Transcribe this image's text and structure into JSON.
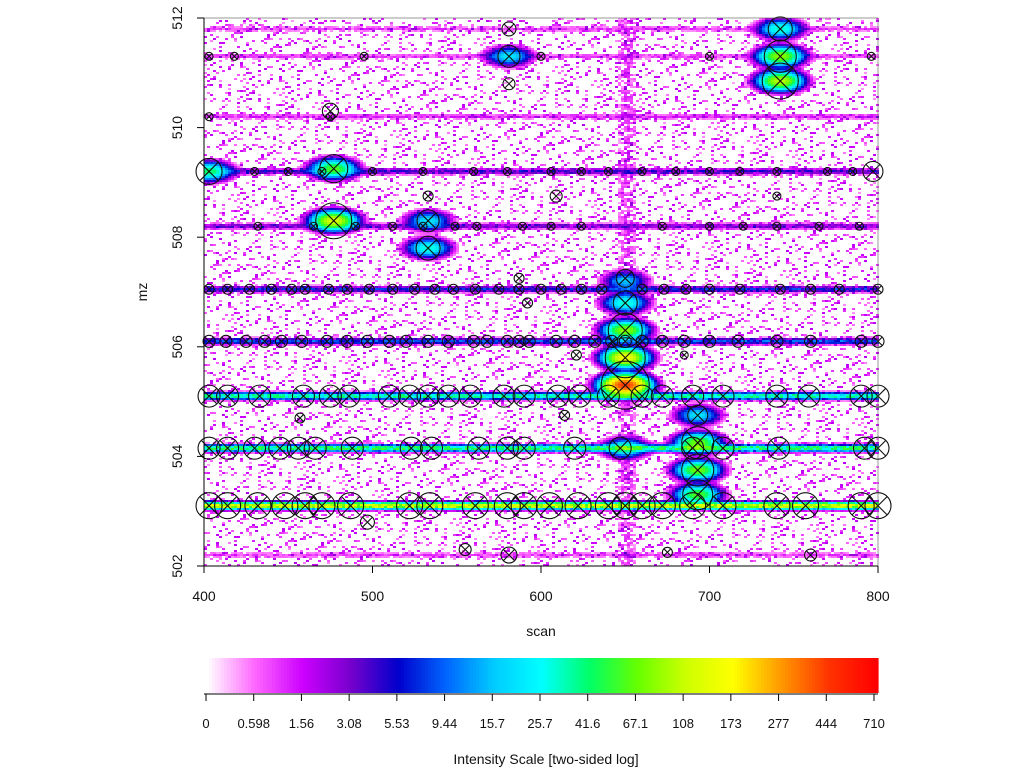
{
  "chart_data": {
    "type": "heatmap",
    "title": "",
    "xlabel": "scan",
    "ylabel": "mz",
    "xlim": [
      400,
      800
    ],
    "ylim": [
      502,
      512
    ],
    "x_ticks": [
      400,
      500,
      600,
      700,
      800
    ],
    "y_ticks": [
      502,
      504,
      506,
      508,
      510,
      512
    ],
    "colorbar": {
      "label": "Intensity Scale [two-sided log]",
      "tick_labels": [
        "0",
        "0.598",
        "1.56",
        "3.08",
        "5.53",
        "9.44",
        "15.7",
        "25.7",
        "41.6",
        "67.1",
        "108",
        "173",
        "277",
        "444",
        "710"
      ],
      "colors": [
        "#ffffff",
        "#ff66ff",
        "#cc00ff",
        "#7700cc",
        "#0000cc",
        "#0066ff",
        "#00ccff",
        "#00ffff",
        "#00ff66",
        "#66ff00",
        "#ccff00",
        "#ffff00",
        "#ff9900",
        "#ff3300",
        "#ff0000"
      ]
    },
    "bands": [
      {
        "mz": 503.1,
        "intensity": 120
      },
      {
        "mz": 504.15,
        "intensity": 45
      },
      {
        "mz": 505.1,
        "intensity": 35
      },
      {
        "mz": 506.1,
        "intensity": 8
      },
      {
        "mz": 507.05,
        "intensity": 6
      },
      {
        "mz": 508.2,
        "intensity": 3
      },
      {
        "mz": 509.2,
        "intensity": 4
      },
      {
        "mz": 510.2,
        "intensity": 1.2
      },
      {
        "mz": 511.3,
        "intensity": 1.0
      },
      {
        "mz": 511.8,
        "intensity": 0.9
      },
      {
        "mz": 502.2,
        "intensity": 0.9
      }
    ],
    "hotspots": [
      {
        "scan": 650,
        "mz": 505.3,
        "intensity": 444
      },
      {
        "scan": 650,
        "mz": 505.8,
        "intensity": 150
      },
      {
        "scan": 650,
        "mz": 506.3,
        "intensity": 80
      },
      {
        "scan": 650,
        "mz": 506.8,
        "intensity": 30
      },
      {
        "scan": 650,
        "mz": 507.2,
        "intensity": 15
      },
      {
        "scan": 650,
        "mz": 504.15,
        "intensity": 30
      },
      {
        "scan": 477,
        "mz": 508.3,
        "intensity": 120
      },
      {
        "scan": 477,
        "mz": 509.25,
        "intensity": 60
      },
      {
        "scan": 742,
        "mz": 510.85,
        "intensity": 100
      },
      {
        "scan": 742,
        "mz": 511.3,
        "intensity": 80
      },
      {
        "scan": 742,
        "mz": 511.8,
        "intensity": 30
      },
      {
        "scan": 693,
        "mz": 504.25,
        "intensity": 70
      },
      {
        "scan": 693,
        "mz": 503.75,
        "intensity": 70
      },
      {
        "scan": 693,
        "mz": 503.3,
        "intensity": 60
      },
      {
        "scan": 693,
        "mz": 504.75,
        "intensity": 20
      },
      {
        "scan": 533,
        "mz": 507.8,
        "intensity": 30
      },
      {
        "scan": 533,
        "mz": 508.3,
        "intensity": 20
      },
      {
        "scan": 403,
        "mz": 509.2,
        "intensity": 40
      },
      {
        "scan": 581,
        "mz": 511.3,
        "intensity": 20
      }
    ],
    "peaks": [
      {
        "scan": 650,
        "mz": 505.3,
        "r": 24
      },
      {
        "scan": 650,
        "mz": 505.8,
        "r": 20
      },
      {
        "scan": 650,
        "mz": 506.3,
        "r": 17
      },
      {
        "scan": 650,
        "mz": 506.8,
        "r": 12
      },
      {
        "scan": 650,
        "mz": 507.25,
        "r": 9
      },
      {
        "scan": 477,
        "mz": 508.3,
        "r": 18
      },
      {
        "scan": 477,
        "mz": 509.25,
        "r": 14
      },
      {
        "scan": 742,
        "mz": 510.85,
        "r": 18
      },
      {
        "scan": 742,
        "mz": 511.3,
        "r": 16
      },
      {
        "scan": 742,
        "mz": 511.8,
        "r": 12
      },
      {
        "scan": 693,
        "mz": 504.25,
        "r": 16
      },
      {
        "scan": 693,
        "mz": 503.75,
        "r": 16
      },
      {
        "scan": 693,
        "mz": 503.3,
        "r": 15
      },
      {
        "scan": 693,
        "mz": 504.75,
        "r": 10
      },
      {
        "scan": 533,
        "mz": 507.8,
        "r": 12
      },
      {
        "scan": 533,
        "mz": 508.3,
        "r": 11
      },
      {
        "scan": 403,
        "mz": 509.2,
        "r": 13
      },
      {
        "scan": 797,
        "mz": 509.2,
        "r": 10
      },
      {
        "scan": 581,
        "mz": 511.3,
        "r": 11
      },
      {
        "scan": 581,
        "mz": 511.8,
        "r": 7
      },
      {
        "scan": 581,
        "mz": 510.8,
        "r": 6
      },
      {
        "scan": 475,
        "mz": 510.3,
        "r": 8
      },
      {
        "scan": 760,
        "mz": 502.2,
        "r": 6
      },
      {
        "scan": 581,
        "mz": 502.2,
        "r": 8
      },
      {
        "scan": 555,
        "mz": 502.3,
        "r": 6
      },
      {
        "scan": 675,
        "mz": 502.25,
        "r": 5
      },
      {
        "scan": 497,
        "mz": 502.8,
        "r": 7
      },
      {
        "scan": 533,
        "mz": 508.75,
        "r": 5
      },
      {
        "scan": 609,
        "mz": 508.75,
        "r": 6
      },
      {
        "scan": 587,
        "mz": 507.25,
        "r": 5
      },
      {
        "scan": 592,
        "mz": 506.8,
        "r": 5
      },
      {
        "scan": 621,
        "mz": 505.85,
        "r": 5
      },
      {
        "scan": 457,
        "mz": 504.7,
        "r": 5
      },
      {
        "scan": 614,
        "mz": 504.75,
        "r": 5
      },
      {
        "scan": 685,
        "mz": 505.85,
        "r": 4
      },
      {
        "scan": 740,
        "mz": 508.75,
        "r": 4
      }
    ],
    "band_peaks": [
      {
        "mz": 503.1,
        "r": 13,
        "scans": [
          403,
          414,
          432,
          448,
          460,
          470,
          487,
          522,
          534,
          561,
          580,
          590,
          605,
          622,
          640,
          650,
          660,
          672,
          690,
          708,
          740,
          757,
          790,
          800
        ]
      },
      {
        "mz": 504.15,
        "r": 11,
        "scans": [
          403,
          414,
          430,
          445,
          456,
          466,
          488,
          523,
          535,
          563,
          580,
          590,
          620,
          647,
          690,
          708,
          741,
          792,
          800
        ]
      },
      {
        "mz": 505.1,
        "r": 11,
        "scans": [
          403,
          414,
          433,
          459,
          475,
          486,
          510,
          522,
          533,
          545,
          558,
          578,
          590,
          610,
          623,
          640,
          660,
          672,
          690,
          708,
          740,
          759,
          790,
          800
        ]
      },
      {
        "mz": 506.1,
        "r": 6,
        "scans": [
          403,
          413,
          425,
          436,
          446,
          458,
          473,
          485,
          497,
          510,
          520,
          533,
          545,
          560,
          568,
          580,
          587,
          593,
          609,
          620,
          632,
          642,
          650,
          660,
          672,
          685,
          700,
          717,
          740,
          760,
          790,
          800
        ]
      },
      {
        "mz": 507.05,
        "r": 5,
        "scans": [
          403,
          414,
          427,
          440,
          452,
          460,
          474,
          485,
          498,
          512,
          525,
          537,
          548,
          561,
          575,
          587,
          600,
          612,
          624,
          636,
          660,
          673,
          686,
          700,
          718,
          742,
          760,
          777,
          800
        ]
      },
      {
        "mz": 508.2,
        "r": 4,
        "scans": [
          432,
          465,
          490,
          512,
          530,
          549,
          562,
          589,
          606,
          624,
          672,
          700,
          720,
          740,
          765,
          789
        ]
      },
      {
        "mz": 509.2,
        "r": 4,
        "scans": [
          430,
          450,
          470,
          500,
          530,
          560,
          580,
          606,
          624,
          640,
          660,
          680,
          700,
          718,
          740,
          770,
          785
        ]
      },
      {
        "mz": 510.2,
        "r": 4,
        "scans": [
          403,
          475
        ]
      },
      {
        "mz": 511.3,
        "r": 4,
        "scans": [
          403,
          418,
          495,
          600,
          700,
          796
        ]
      }
    ]
  }
}
